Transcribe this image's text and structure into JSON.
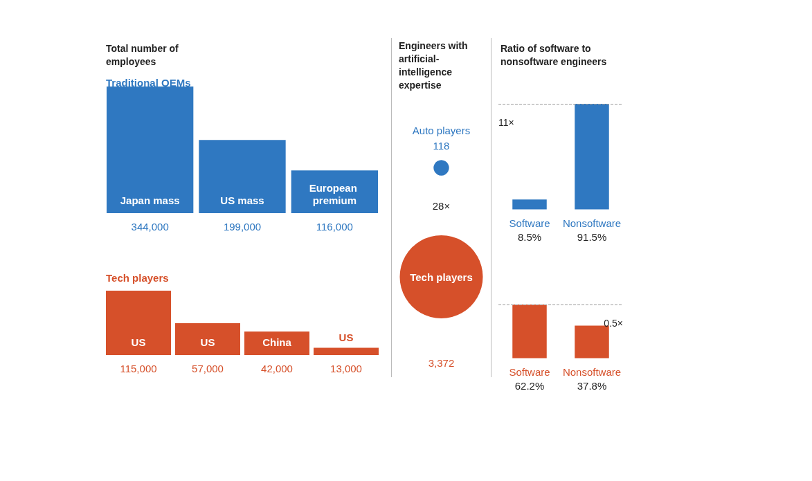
{
  "chart_data": [
    {
      "type": "bar",
      "title": "Total number of employees",
      "subtitle": "Traditional OEMs",
      "categories": [
        "Japan mass",
        "US mass",
        "European premium"
      ],
      "values": [
        344000,
        199000,
        116000
      ],
      "value_labels": [
        "344,000",
        "199,000",
        "116,000"
      ],
      "color": "#2f78c1"
    },
    {
      "type": "bar",
      "subtitle": "Tech players",
      "categories": [
        "US",
        "US",
        "China",
        "US"
      ],
      "values": [
        115000,
        57000,
        42000,
        13000
      ],
      "value_labels": [
        "115,000",
        "57,000",
        "42,000",
        "13,000"
      ],
      "color": "#d6502a"
    },
    {
      "type": "other",
      "title": "Engineers with artificial-intelligence expertise",
      "categories": [
        "Auto players",
        "Tech players"
      ],
      "values": [
        118,
        3372
      ],
      "value_labels": [
        "118",
        "3,372"
      ],
      "colors": [
        "#2f78c1",
        "#d6502a"
      ],
      "annotations": [
        "28×"
      ]
    },
    {
      "type": "bar",
      "title": "Ratio of software to nonsoftware engineers",
      "categories": [
        "Software",
        "Nonsoftware"
      ],
      "values": [
        8.5,
        91.5
      ],
      "value_labels": [
        "8.5%",
        "91.5%"
      ],
      "color": "#2f78c1",
      "ref_lines": [
        {
          "axis": "y",
          "value": 91.5,
          "label": "11×",
          "line_style": "dashed",
          "color": "#999999"
        }
      ]
    },
    {
      "type": "bar",
      "categories": [
        "Software",
        "Nonsoftware"
      ],
      "values": [
        62.2,
        37.8
      ],
      "value_labels": [
        "62.2%",
        "37.8%"
      ],
      "color": "#d6502a",
      "ref_lines": [
        {
          "axis": "y",
          "value": 62.2,
          "label": "0.5×",
          "line_style": "dashed",
          "color": "#999999"
        }
      ]
    }
  ]
}
